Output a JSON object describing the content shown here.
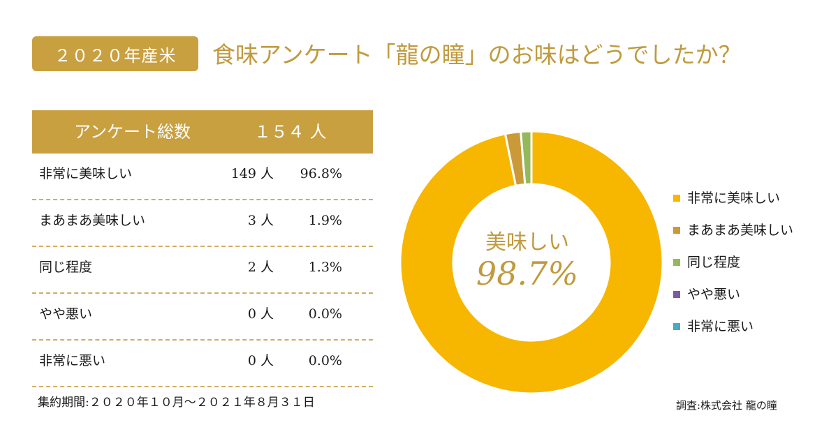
{
  "badge": "２０２０年産米",
  "headline": "食味アンケート「龍の瞳」のお味はどうでしたか？",
  "table": {
    "header_label": "アンケート総数",
    "header_count": "１５４ 人",
    "rows": [
      {
        "label": "非常に美味しい",
        "count": "149 人",
        "pct": "96.8%"
      },
      {
        "label": "まあまあ美味しい",
        "count": "3 人",
        "pct": "1.9%"
      },
      {
        "label": "同じ程度",
        "count": "2 人",
        "pct": "1.3%"
      },
      {
        "label": "やや悪い",
        "count": "0 人",
        "pct": "0.0%"
      },
      {
        "label": "非常に悪い",
        "count": "0 人",
        "pct": "0.0%"
      }
    ]
  },
  "period": "集約期間:２０２０年１０月〜２０２１年８月３１日",
  "chart_data": {
    "type": "pie",
    "variant": "donut",
    "categories": [
      "非常に美味しい",
      "まあまあ美味しい",
      "同じ程度",
      "やや悪い",
      "非常に悪い"
    ],
    "values": [
      96.8,
      1.9,
      1.3,
      0.0,
      0.0
    ],
    "colors": [
      "#f7b600",
      "#c99a37",
      "#93b95b",
      "#7b5aa6",
      "#4aa9c4"
    ],
    "center_label": "美味しい",
    "center_value": "98.7%",
    "legend_position": "right"
  },
  "source": "調査:株式会社 龍の瞳"
}
